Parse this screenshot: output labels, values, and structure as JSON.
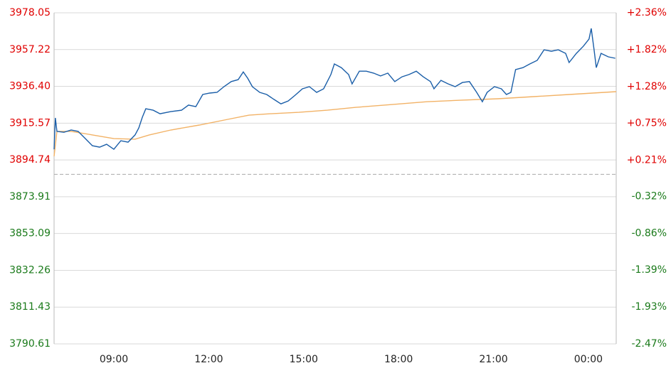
{
  "chart_data": {
    "type": "line",
    "xlim": [
      7.11,
      24.88
    ],
    "xticks": [
      {
        "value": 9,
        "label": "09:00"
      },
      {
        "value": 12,
        "label": "12:00"
      },
      {
        "value": 15,
        "label": "15:00"
      },
      {
        "value": 18,
        "label": "18:00"
      },
      {
        "value": 21,
        "label": "21:00"
      },
      {
        "value": 24,
        "label": "00:00"
      }
    ],
    "ylim": [
      3790.61,
      3978.05
    ],
    "yticks": [
      3978.05,
      3957.22,
      {
        "value": 3936.4,
        "label": "3936.40"
      },
      3915.57,
      3894.74,
      3873.91,
      3853.09,
      3832.26,
      3811.43,
      3790.61
    ],
    "y2lim": [
      -2.47,
      2.36
    ],
    "y2ticks": [
      {
        "value": 2.36,
        "label": "+2.36%"
      },
      {
        "value": 1.82,
        "label": "+1.82%"
      },
      {
        "value": 1.28,
        "label": "+1.28%"
      },
      {
        "value": 0.75,
        "label": "+0.75%"
      },
      {
        "value": 0.21,
        "label": "+0.21%"
      },
      {
        "value": -0.32,
        "label": "-0.32%"
      },
      {
        "value": -0.86,
        "label": "-0.86%"
      },
      {
        "value": -1.39,
        "label": "-1.39%"
      },
      {
        "value": -1.93,
        "label": "-1.93%"
      },
      {
        "value": -2.47,
        "label": "-2.47%"
      }
    ],
    "reference": 3886.6,
    "up_color": "#e00000",
    "down_color": "#1a7a1a",
    "grid": true,
    "series": [
      {
        "color": "#1a5ea8",
        "x": [
          7.11,
          7.15,
          7.2,
          7.42,
          7.65,
          7.87,
          8.1,
          8.32,
          8.55,
          8.77,
          9.0,
          9.22,
          9.45,
          9.67,
          9.79,
          9.9,
          10.01,
          10.24,
          10.46,
          10.8,
          11.14,
          11.36,
          11.59,
          11.81,
          12.03,
          12.26,
          12.48,
          12.71,
          12.93,
          13.09,
          13.23,
          13.38,
          13.61,
          13.83,
          14.06,
          14.28,
          14.51,
          14.73,
          14.96,
          15.18,
          15.41,
          15.63,
          15.86,
          15.97,
          16.19,
          16.42,
          16.53,
          16.76,
          16.98,
          17.21,
          17.43,
          17.66,
          17.88,
          18.11,
          18.33,
          18.56,
          18.78,
          19.01,
          19.12,
          19.34,
          19.57,
          19.79,
          20.02,
          20.24,
          20.47,
          20.65,
          20.8,
          21.03,
          21.25,
          21.41,
          21.55,
          21.7,
          21.93,
          22.15,
          22.38,
          22.6,
          22.83,
          23.05,
          23.28,
          23.39,
          23.62,
          23.84,
          24.02,
          24.09,
          24.18,
          24.25,
          24.4,
          24.63,
          24.85
        ],
        "values": [
          3900.8,
          3918.5,
          3910.9,
          3910.4,
          3911.7,
          3910.9,
          3906.8,
          3902.8,
          3902.0,
          3903.6,
          3900.8,
          3905.6,
          3904.8,
          3908.9,
          3912.9,
          3918.9,
          3923.7,
          3922.9,
          3920.9,
          3922.1,
          3922.9,
          3925.8,
          3924.9,
          3931.8,
          3932.6,
          3933.0,
          3936.2,
          3939.1,
          3940.2,
          3944.6,
          3941.0,
          3936.2,
          3933.0,
          3931.8,
          3929.0,
          3926.5,
          3928.1,
          3931.4,
          3935.0,
          3936.2,
          3933.0,
          3935.0,
          3943.1,
          3949.1,
          3947.0,
          3943.1,
          3937.8,
          3945.0,
          3945.0,
          3943.9,
          3942.3,
          3943.9,
          3939.1,
          3941.8,
          3943.1,
          3945.0,
          3941.8,
          3939.1,
          3935.0,
          3939.8,
          3937.8,
          3936.2,
          3938.6,
          3939.1,
          3933.0,
          3927.7,
          3933.0,
          3936.2,
          3935.0,
          3931.8,
          3933.0,
          3945.9,
          3947.0,
          3949.1,
          3951.1,
          3957.1,
          3956.3,
          3957.1,
          3955.1,
          3949.9,
          3955.1,
          3959.1,
          3963.2,
          3969.2,
          3957.1,
          3947.0,
          3955.1,
          3953.1,
          3952.3
        ]
      },
      {
        "color": "#f2b266",
        "x": [
          7.11,
          7.2,
          7.65,
          8.32,
          9.0,
          9.67,
          10.12,
          10.8,
          11.7,
          12.6,
          13.27,
          13.95,
          14.85,
          15.75,
          16.65,
          17.77,
          18.89,
          20.02,
          21.14,
          22.27,
          23.39,
          24.88
        ],
        "values": [
          3896.8,
          3910.9,
          3910.9,
          3908.9,
          3906.8,
          3906.5,
          3908.9,
          3911.7,
          3914.5,
          3917.7,
          3920.1,
          3920.9,
          3921.7,
          3922.9,
          3924.5,
          3926.1,
          3927.7,
          3928.6,
          3929.4,
          3930.6,
          3931.8,
          3933.4
        ]
      }
    ]
  }
}
